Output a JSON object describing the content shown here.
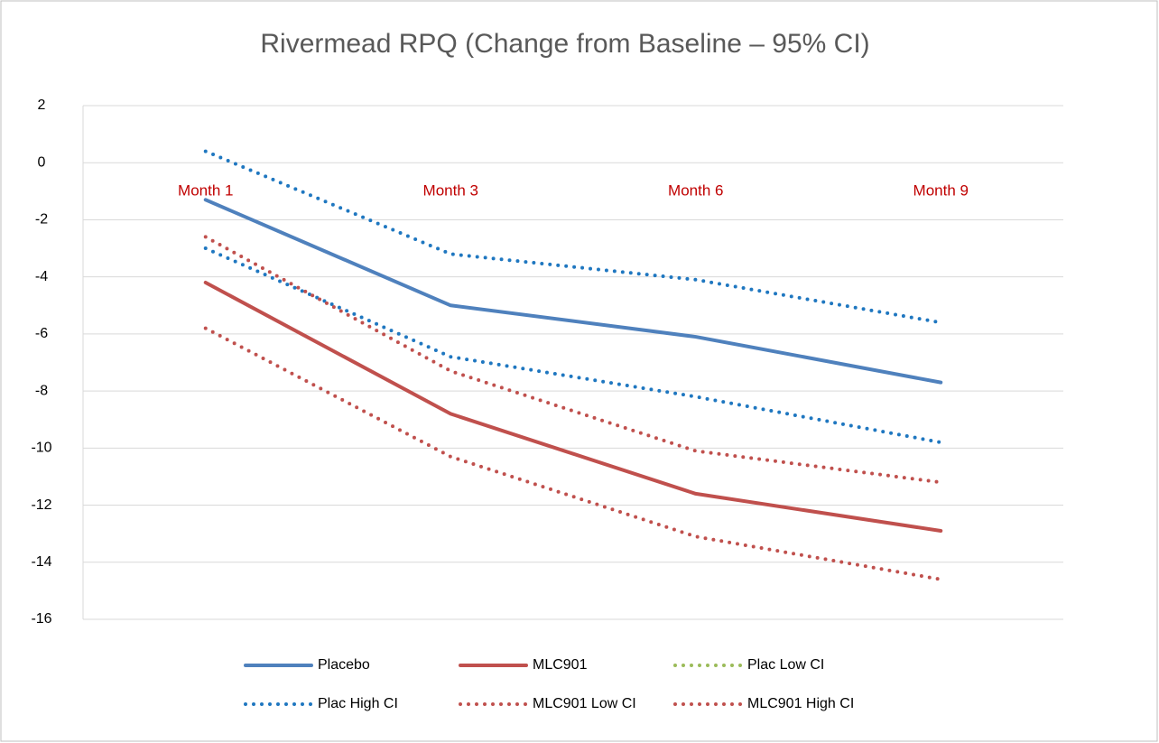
{
  "chart_data": {
    "type": "line",
    "title": "Rivermead RPQ (Change from Baseline – 95% CI)",
    "categories": [
      "Month 1",
      "Month 3",
      "Month 6",
      "Month 9"
    ],
    "series": [
      {
        "name": "Placebo",
        "color": "#4f81bd",
        "dashed": false,
        "values": [
          -1.3,
          -5.0,
          -6.1,
          -7.7
        ]
      },
      {
        "name": "MLC901",
        "color": "#c0504d",
        "dashed": false,
        "values": [
          -4.2,
          -8.8,
          -11.6,
          -12.9
        ]
      },
      {
        "name": "Plac Low CI",
        "color": "#1f77c0",
        "legend_color": "#9bbb59",
        "dashed": true,
        "values": [
          -3.0,
          -6.8,
          -8.2,
          -9.8
        ]
      },
      {
        "name": "Plac High CI",
        "color": "#1f77c0",
        "dashed": true,
        "values": [
          0.4,
          -3.2,
          -4.1,
          -5.6
        ]
      },
      {
        "name": "MLC901 Low CI",
        "color": "#c0504d",
        "dashed": true,
        "values": [
          -5.8,
          -10.3,
          -13.1,
          -14.6
        ]
      },
      {
        "name": "MLC901 High CI",
        "color": "#c0504d",
        "dashed": true,
        "values": [
          -2.6,
          -7.3,
          -10.1,
          -11.2
        ]
      }
    ],
    "ylim": [
      -16,
      2
    ],
    "yticks": [
      -16,
      -14,
      -12,
      -10,
      -8,
      -6,
      -4,
      -2,
      0,
      2
    ],
    "grid": true,
    "legend": "bottom"
  }
}
